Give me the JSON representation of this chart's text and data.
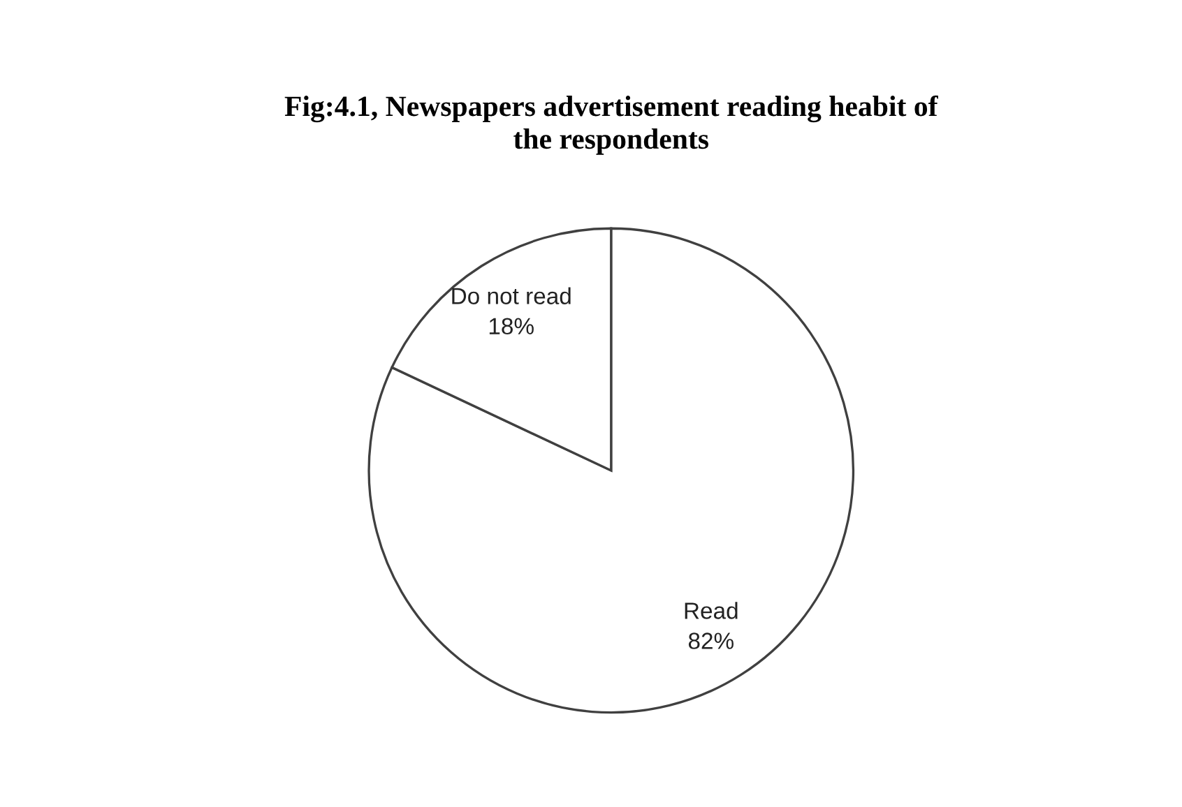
{
  "chart_data": {
    "type": "pie",
    "title": "Fig:4.1, Newspapers advertisement reading heabit of\nthe respondents",
    "categories": [
      "Read",
      "Do not read"
    ],
    "values": [
      82,
      18
    ],
    "colors": [
      "#ffffff",
      "#ffffff"
    ],
    "value_labels": [
      "82%",
      "18%"
    ],
    "legend": false
  }
}
